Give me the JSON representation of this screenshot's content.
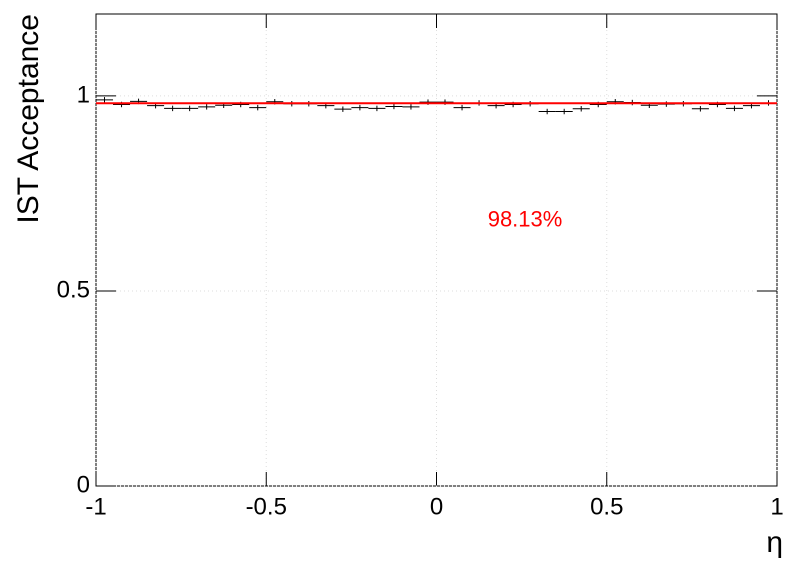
{
  "chart_data": {
    "type": "errorbar",
    "xlabel": "η",
    "ylabel": "IST Acceptance",
    "x": [
      -0.975,
      -0.925,
      -0.875,
      -0.825,
      -0.775,
      -0.725,
      -0.675,
      -0.625,
      -0.575,
      -0.525,
      -0.475,
      -0.425,
      -0.375,
      -0.325,
      -0.275,
      -0.225,
      -0.175,
      -0.125,
      -0.075,
      -0.025,
      0.025,
      0.075,
      0.125,
      0.175,
      0.225,
      0.275,
      0.325,
      0.375,
      0.425,
      0.475,
      0.525,
      0.575,
      0.625,
      0.675,
      0.725,
      0.775,
      0.825,
      0.875,
      0.925,
      0.975
    ],
    "bin_width": 0.05,
    "values": [
      0.99,
      0.978,
      0.986,
      0.975,
      0.968,
      0.968,
      0.972,
      0.976,
      0.978,
      0.97,
      0.985,
      0.98,
      0.98,
      0.975,
      0.966,
      0.97,
      0.968,
      0.973,
      0.972,
      0.984,
      0.984,
      0.97,
      0.982,
      0.975,
      0.978,
      0.98,
      0.96,
      0.96,
      0.967,
      0.978,
      0.985,
      0.983,
      0.976,
      0.979,
      0.98,
      0.967,
      0.978,
      0.968,
      0.975,
      0.982
    ],
    "errors": [
      0.007,
      0.007,
      0.007,
      0.007,
      0.007,
      0.007,
      0.007,
      0.007,
      0.007,
      0.007,
      0.007,
      0.007,
      0.007,
      0.007,
      0.007,
      0.007,
      0.007,
      0.007,
      0.007,
      0.007,
      0.007,
      0.007,
      0.007,
      0.007,
      0.007,
      0.007,
      0.007,
      0.007,
      0.007,
      0.007,
      0.007,
      0.007,
      0.007,
      0.007,
      0.007,
      0.007,
      0.007,
      0.007,
      0.007,
      0.007
    ],
    "color": "#000000",
    "fit": {
      "value": 0.9813,
      "color": "#ff0000",
      "label": "98.13%",
      "label_x": 0.26,
      "label_y": 0.68
    },
    "xlim": [
      -1,
      1
    ],
    "ylim": [
      0,
      1.21
    ],
    "xticks": [
      -1,
      -0.5,
      0,
      0.5,
      1
    ],
    "yticks": [
      0,
      0.5,
      1
    ],
    "grid": true
  }
}
